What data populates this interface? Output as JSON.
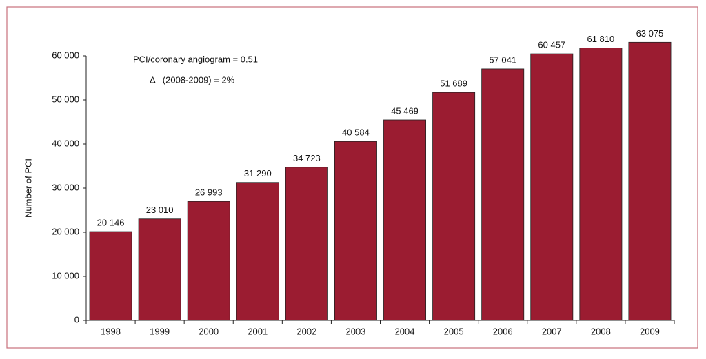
{
  "chart_data": {
    "type": "bar",
    "y_label": "Number of PCI",
    "annotations": [
      "PCI/coronary angiogram = 0.51",
      "Δ   (2008-2009) = 2%"
    ],
    "categories": [
      "1998",
      "1999",
      "2000",
      "2001",
      "2002",
      "2003",
      "2004",
      "2005",
      "2006",
      "2007",
      "2008",
      "2009"
    ],
    "values": [
      20146,
      23010,
      26993,
      31290,
      34723,
      40584,
      45469,
      51689,
      57041,
      60457,
      61810,
      63075
    ],
    "value_labels": [
      "20 146",
      "23 010",
      "26 993",
      "31 290",
      "34 723",
      "40 584",
      "45 469",
      "51 689",
      "57 041",
      "60 457",
      "61 810",
      "63 075"
    ],
    "color": "#9b1c31",
    "ylim": [
      0,
      60000
    ],
    "yticks": [
      0,
      {
        "value": 10000,
        "label": "10 000"
      },
      {
        "value": 20000,
        "label": "20 000"
      },
      {
        "value": 30000,
        "label": "30 000"
      },
      {
        "value": 40000,
        "label": "40 000"
      },
      {
        "value": 50000,
        "label": "50 000"
      },
      {
        "value": 60000,
        "label": "60 000"
      }
    ]
  }
}
